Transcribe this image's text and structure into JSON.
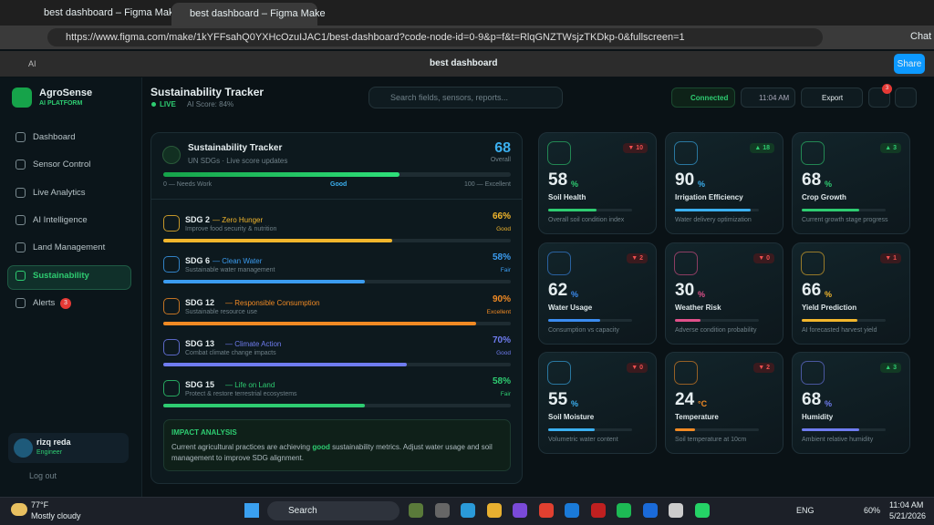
{
  "browser": {
    "tabs": [
      "best dashboard – Figma Make",
      "best dashboard – Figma Make"
    ],
    "url": "https://www.figma.com/make/1kYFFsahQ0YXHcOzuIJAC1/best-dashboard?code-node-id=0-9&p=f&t=RlqGNZTWsjzTKDkp-0&fullscreen=1",
    "chat": "Chat"
  },
  "figma": {
    "badge": "AI",
    "file": "best dashboard",
    "share": "Share"
  },
  "sidebar": {
    "brand": "AgroSense",
    "tagline": "AI PLATFORM",
    "nav": [
      {
        "label": "Dashboard"
      },
      {
        "label": "Sensor Control"
      },
      {
        "label": "Live Analytics"
      },
      {
        "label": "AI Intelligence"
      },
      {
        "label": "Land Management"
      },
      {
        "label": "Sustainability",
        "active": true
      },
      {
        "label": "Alerts",
        "badge": "3"
      }
    ],
    "user": {
      "name": "rizq reda",
      "role": "Engineer"
    },
    "logout": "Log out"
  },
  "header": {
    "title": "Sustainability Tracker",
    "live": "LIVE",
    "ai_score": "AI Score: 84%",
    "search": "Search fields, sensors, reports...",
    "status": "Connected",
    "time": "11:04 AM",
    "export": "Export",
    "notifications": "3"
  },
  "tracker": {
    "title": "Sustainability Tracker",
    "subtitle": "UN SDGs · Live score updates",
    "score": 68,
    "score_label": "Overall",
    "scale": {
      "low": "0 — Needs Work",
      "mid": "Good",
      "high": "100 — Excellent"
    },
    "sdgs": [
      {
        "code": "SDG 2",
        "name": "— Zero Hunger",
        "desc": "Improve food security & nutrition",
        "value": "66%",
        "status": "Good",
        "color": "#f2b62c"
      },
      {
        "code": "SDG 6",
        "name": "— Clean Water",
        "desc": "Sustainable water management",
        "value": "58%",
        "status": "Fair",
        "color": "#3b9cf0"
      },
      {
        "code": "SDG 12",
        "name": "— Responsible Consumption",
        "desc": "Sustainable resource use",
        "value": "90%",
        "status": "Excellent",
        "color": "#f08a24"
      },
      {
        "code": "SDG 13",
        "name": "— Climate Action",
        "desc": "Combat climate change impacts",
        "value": "70%",
        "status": "Good",
        "color": "#6f7cf0"
      },
      {
        "code": "SDG 15",
        "name": "— Life on Land",
        "desc": "Protect & restore terrestrial ecosystems",
        "value": "58%",
        "status": "Fair",
        "color": "#2ecc71"
      }
    ],
    "impact": {
      "title": "IMPACT ANALYSIS",
      "before": "Current agricultural practices are achieving",
      "highlight": "good",
      "after": "sustainability metrics. Adjust water usage and soil management to improve SDG alignment."
    }
  },
  "cards": [
    {
      "value": 58,
      "unit": "%",
      "label": "Soil Health",
      "desc": "Overall soil condition index",
      "delta": "▼ 10",
      "color": "#2ecc71"
    },
    {
      "value": 90,
      "unit": "%",
      "label": "Irrigation Efficiency",
      "desc": "Water delivery optimization",
      "delta": "▲ 18",
      "color": "#3bb0f0"
    },
    {
      "value": 68,
      "unit": "%",
      "label": "Crop Growth",
      "desc": "Current growth stage progress",
      "delta": "▲ 3",
      "color": "#2ecc71"
    },
    {
      "value": 62,
      "unit": "%",
      "label": "Water Usage",
      "desc": "Consumption vs capacity",
      "delta": "▼ 2",
      "color": "#3b8cf0"
    },
    {
      "value": 30,
      "unit": "%",
      "label": "Weather Risk",
      "desc": "Adverse condition probability",
      "delta": "▼ 0",
      "color": "#e0508a"
    },
    {
      "value": 66,
      "unit": "%",
      "label": "Yield Prediction",
      "desc": "AI forecasted harvest yield",
      "delta": "▼ 1",
      "color": "#f2b62c"
    },
    {
      "value": 55,
      "unit": "%",
      "label": "Soil Moisture",
      "desc": "Volumetric water content",
      "delta": "▼ 0",
      "color": "#3bb0f0"
    },
    {
      "value": 24,
      "unit": "°C",
      "label": "Temperature",
      "desc": "Soil temperature at 10cm",
      "delta": "▼ 2",
      "color": "#f08a24"
    },
    {
      "value": 68,
      "unit": "%",
      "label": "Humidity",
      "desc": "Ambient relative humidity",
      "delta": "▲ 3",
      "color": "#6f7cf0"
    }
  ],
  "taskbar": {
    "temp": "77°F",
    "weather": "Mostly cloudy",
    "search": "Search",
    "lang": "ENG",
    "battery": "60%",
    "time": "11:04 AM",
    "date": "5/21/2026"
  }
}
